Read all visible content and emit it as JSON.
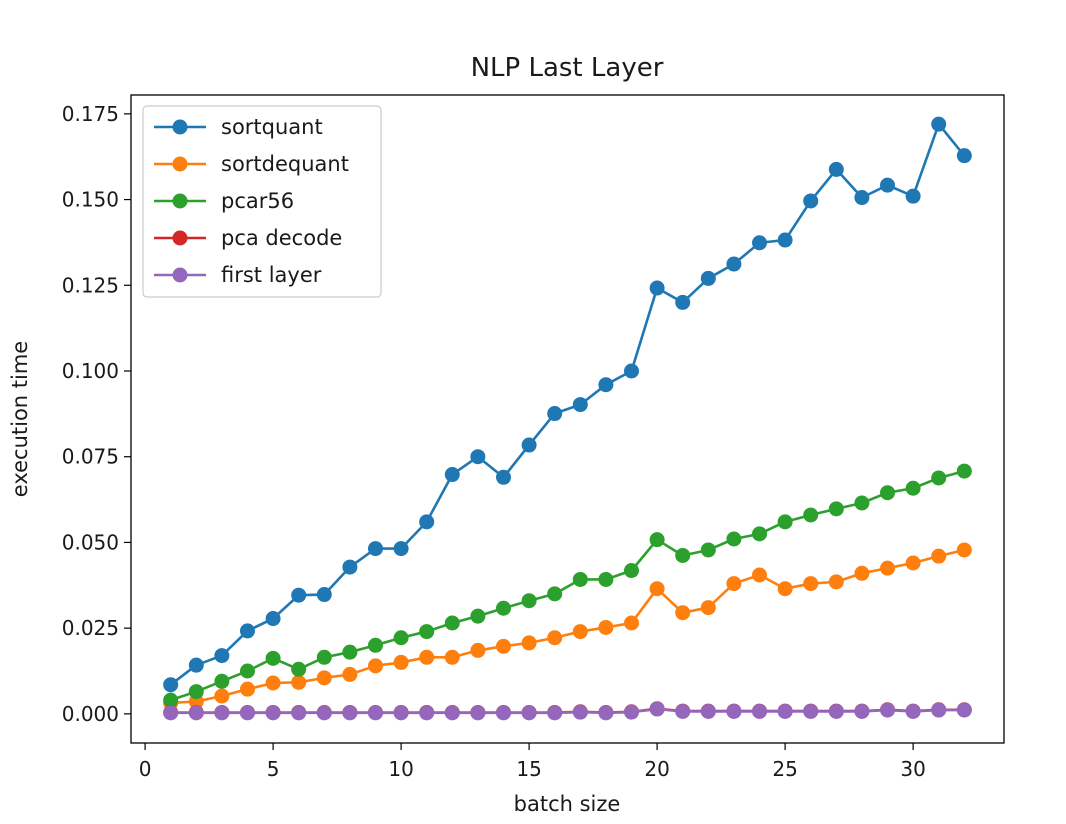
{
  "chart_data": {
    "type": "line",
    "title": "NLP Last Layer",
    "xlabel": "batch size",
    "ylabel": "execution time",
    "xlim": [
      -0.55,
      33.55
    ],
    "ylim": [
      -0.0085,
      0.1805
    ],
    "xticks": [
      0,
      5,
      10,
      15,
      20,
      25,
      30
    ],
    "xtick_labels": [
      "0",
      "5",
      "10",
      "15",
      "20",
      "25",
      "30"
    ],
    "yticks": [
      0.0,
      0.025,
      0.05,
      0.075,
      0.1,
      0.125,
      0.15,
      0.175
    ],
    "ytick_labels": [
      "0.000",
      "0.025",
      "0.050",
      "0.075",
      "0.100",
      "0.125",
      "0.150",
      "0.175"
    ],
    "grid": false,
    "legend_position": "upper-left",
    "x": [
      1,
      2,
      3,
      4,
      5,
      6,
      7,
      8,
      9,
      10,
      11,
      12,
      13,
      14,
      15,
      16,
      17,
      18,
      19,
      20,
      21,
      22,
      23,
      24,
      25,
      26,
      27,
      28,
      29,
      30,
      31,
      32
    ],
    "series": [
      {
        "name": "sortquant",
        "color": "#1f77b4",
        "values": [
          0.0085,
          0.0142,
          0.017,
          0.0242,
          0.0278,
          0.0346,
          0.0348,
          0.0428,
          0.0482,
          0.0482,
          0.056,
          0.0698,
          0.075,
          0.069,
          0.0784,
          0.0876,
          0.0902,
          0.096,
          0.1,
          0.1242,
          0.12,
          0.127,
          0.1312,
          0.1374,
          0.1382,
          0.1496,
          0.1588,
          0.1506,
          0.1542,
          0.151,
          0.172,
          0.1628
        ]
      },
      {
        "name": "sortdequant",
        "color": "#ff7f0e",
        "values": [
          0.0032,
          0.0036,
          0.0052,
          0.0072,
          0.009,
          0.0092,
          0.0105,
          0.0115,
          0.014,
          0.015,
          0.0165,
          0.0165,
          0.0185,
          0.0197,
          0.0207,
          0.0222,
          0.024,
          0.0252,
          0.0265,
          0.0365,
          0.0295,
          0.031,
          0.038,
          0.0405,
          0.0365,
          0.038,
          0.0385,
          0.041,
          0.0425,
          0.044,
          0.046,
          0.0478
        ]
      },
      {
        "name": "pcar56",
        "color": "#2ca02c",
        "values": [
          0.004,
          0.0065,
          0.0095,
          0.0125,
          0.0162,
          0.013,
          0.0165,
          0.018,
          0.02,
          0.0222,
          0.024,
          0.0265,
          0.0285,
          0.0308,
          0.033,
          0.035,
          0.0392,
          0.0392,
          0.0418,
          0.0508,
          0.0462,
          0.0478,
          0.051,
          0.0525,
          0.056,
          0.058,
          0.0598,
          0.0615,
          0.0645,
          0.0658,
          0.0688,
          0.0708
        ]
      },
      {
        "name": "pca decode",
        "color": "#d62728",
        "values": [
          0.0004,
          0.0004,
          0.0004,
          0.0004,
          0.0004,
          0.0004,
          0.0004,
          0.0004,
          0.0004,
          0.0004,
          0.0004,
          0.0004,
          0.0004,
          0.0004,
          0.0004,
          0.0004,
          0.0006,
          0.0004,
          0.0006,
          0.0015,
          0.0008,
          0.0008,
          0.0008,
          0.0008,
          0.0008,
          0.0008,
          0.0008,
          0.0008,
          0.0012,
          0.0008,
          0.0012,
          0.0012
        ]
      },
      {
        "name": "first layer",
        "color": "#9467bd",
        "values": [
          0.0003,
          0.0003,
          0.0003,
          0.0003,
          0.0003,
          0.0003,
          0.0003,
          0.0003,
          0.0003,
          0.0003,
          0.0003,
          0.0003,
          0.0003,
          0.0003,
          0.0003,
          0.0003,
          0.0005,
          0.0003,
          0.0005,
          0.0014,
          0.0007,
          0.0007,
          0.0007,
          0.0007,
          0.0007,
          0.0007,
          0.0007,
          0.0007,
          0.0011,
          0.0007,
          0.0011,
          0.0011
        ]
      }
    ]
  }
}
